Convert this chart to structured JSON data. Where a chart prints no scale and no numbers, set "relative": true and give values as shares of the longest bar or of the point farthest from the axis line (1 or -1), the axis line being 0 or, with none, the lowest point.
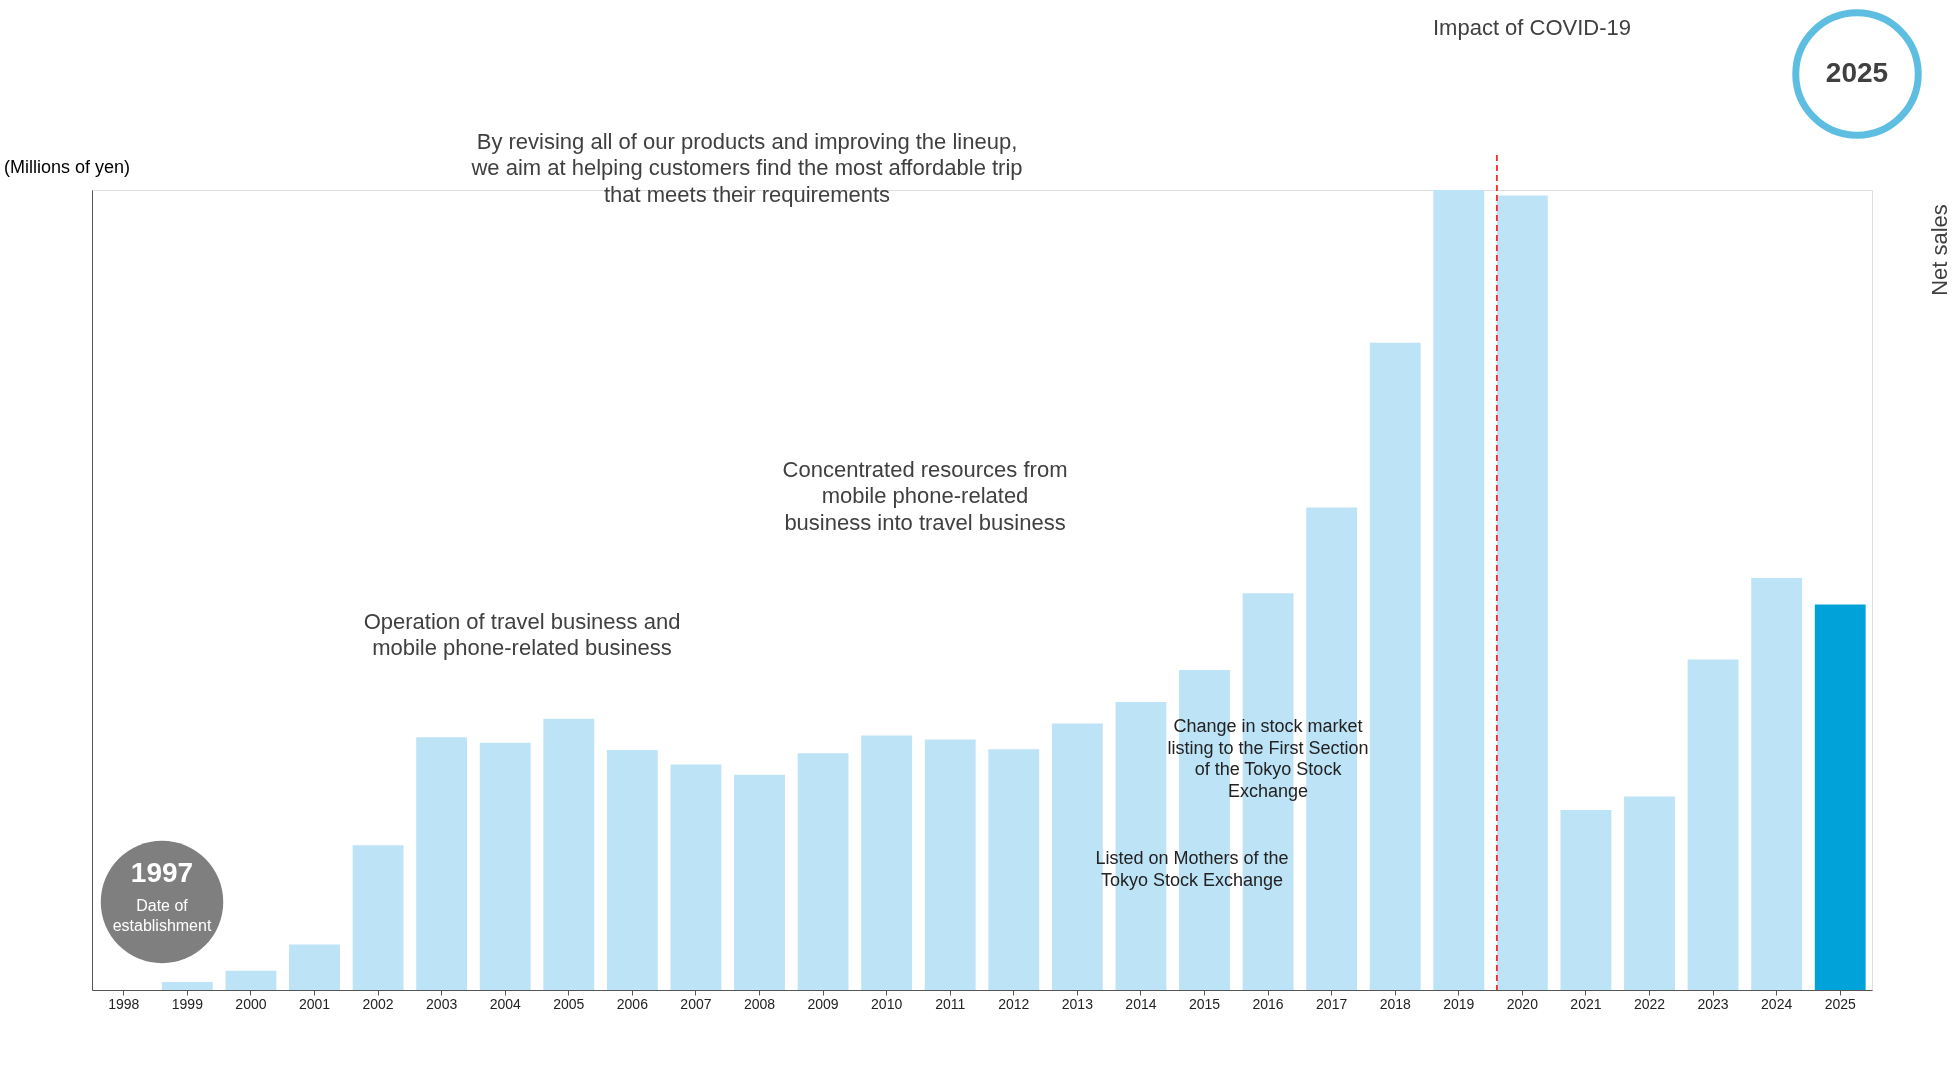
{
  "chart_data": {
    "type": "bar",
    "relative": true,
    "ylabel": "(Millions of yen)",
    "y2label": "Net sales",
    "categories": [
      "1998",
      "1999",
      "2000",
      "2001",
      "2002",
      "2003",
      "2004",
      "2005",
      "2006",
      "2007",
      "2008",
      "2009",
      "2010",
      "2011",
      "2012",
      "2013",
      "2014",
      "2015",
      "2016",
      "2017",
      "2018",
      "2019",
      "2020",
      "2021",
      "2022",
      "2023",
      "2024",
      "2025"
    ],
    "values": [
      0,
      0.01,
      0.024,
      0.057,
      0.181,
      0.316,
      0.309,
      0.339,
      0.3,
      0.282,
      0.269,
      0.296,
      0.318,
      0.313,
      0.301,
      0.333,
      0.36,
      0.4,
      0.496,
      0.603,
      0.809,
      1,
      0.993,
      0.225,
      0.242,
      0.413,
      0.515,
      0.482
    ],
    "colors": [
      "#bde3f7",
      "#bde3f7",
      "#bde3f7",
      "#bde3f7",
      "#bde3f7",
      "#bde3f7",
      "#bde3f7",
      "#bde3f7",
      "#bde3f7",
      "#bde3f7",
      "#bde3f7",
      "#bde3f7",
      "#bde3f7",
      "#bde3f7",
      "#bde3f7",
      "#bde3f7",
      "#bde3f7",
      "#bde3f7",
      "#bde3f7",
      "#bde3f7",
      "#bde3f7",
      "#bde3f7",
      "#bde3f7",
      "#bde3f7",
      "#bde3f7",
      "#bde3f7",
      "#bde3f7",
      "#00a3d9"
    ],
    "ref_lines": [
      {
        "axis": "x",
        "value": "2020",
        "color": "#ff0000",
        "line_style": "dashed"
      }
    ],
    "annotations": [
      "Impact of COVID-19",
      "2025",
      "By revising all of our products and improving the lineup,\nwe aim at helping customers find the most affordable trip\nthat meets their requirements",
      "Concentrated resources from\nmobile phone-related\nbusiness into travel business",
      "Operation of travel business and\nmobile phone-related business",
      "Change in stock market\nlisting to the First Section\nof the Tokyo Stock\nExchange",
      "Listed on Mothers of the\nTokyo Stock Exchange",
      "1997\nDate of\nestablishment"
    ]
  }
}
